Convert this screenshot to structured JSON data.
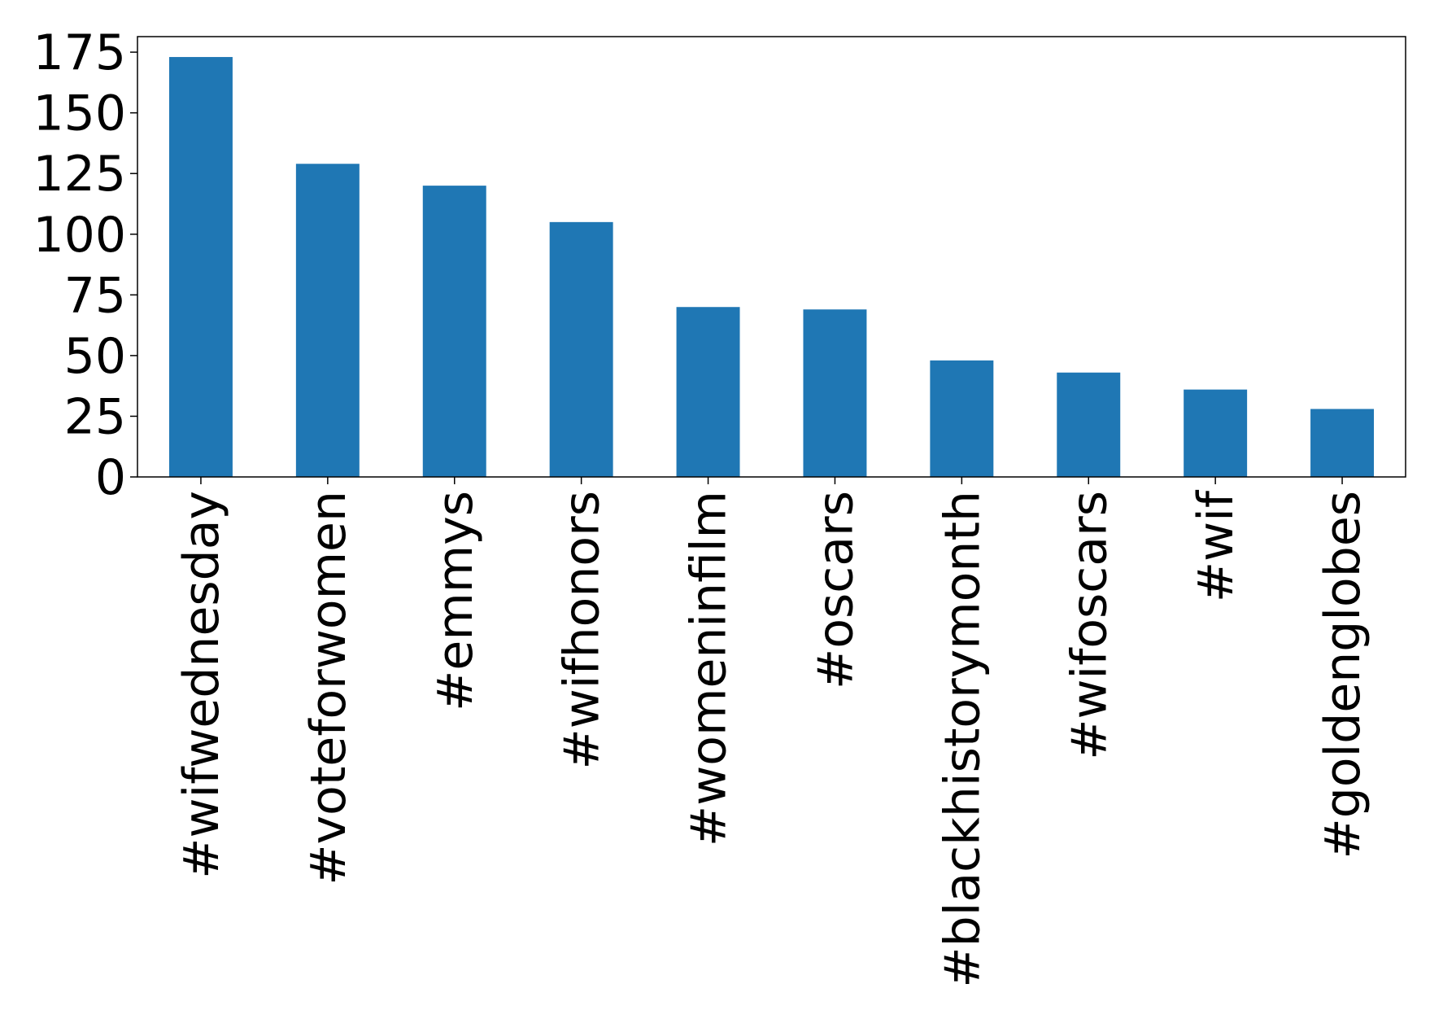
{
  "chart_data": {
    "type": "bar",
    "categories": [
      "#wifwednesday",
      "#voteforwomen",
      "#emmys",
      "#wifhonors",
      "#womeninfilm",
      "#oscars",
      "#blackhistorymonth",
      "#wifoscars",
      "#wif",
      "#goldenglobes"
    ],
    "values": [
      173,
      129,
      120,
      105,
      70,
      69,
      48,
      43,
      36,
      28
    ],
    "color": "#1f77b4",
    "ylim": [
      0,
      181.4
    ],
    "yticks": [
      0,
      25,
      50,
      75,
      100,
      125,
      150,
      175
    ],
    "grid": false
  }
}
